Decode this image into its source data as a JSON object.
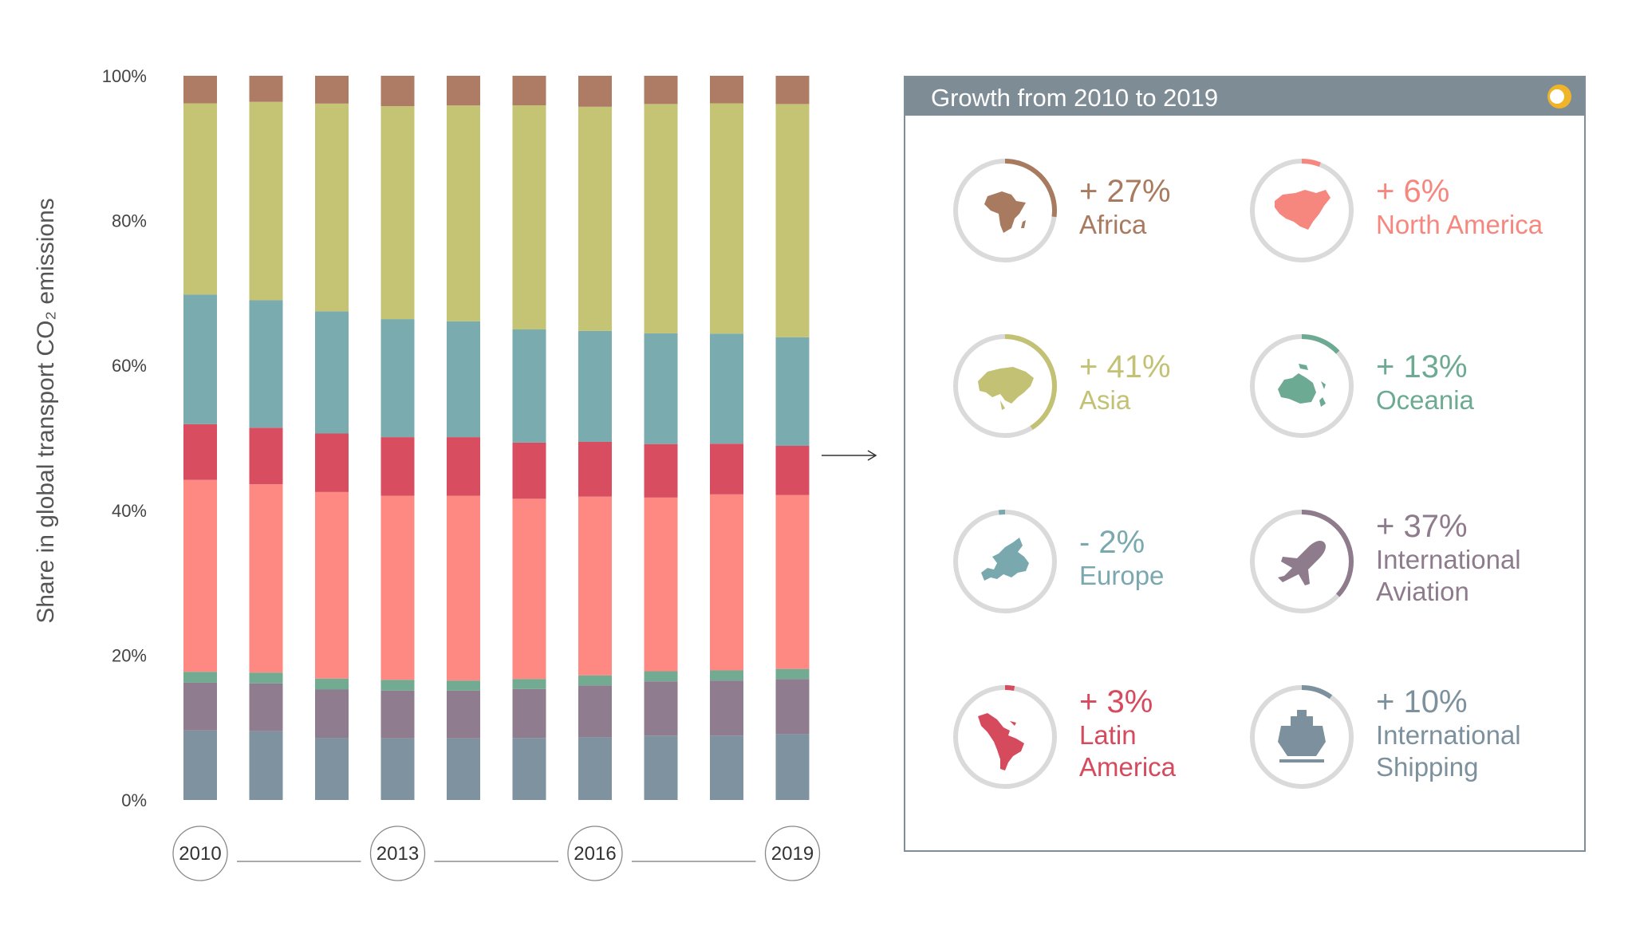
{
  "chart_data": {
    "type": "bar",
    "stacked": true,
    "percent_stacked": true,
    "ylabel": "Share in global transport CO₂ emissions",
    "ylim": [
      0,
      100
    ],
    "y_ticks": [
      "0%",
      "20%",
      "40%",
      "60%",
      "80%",
      "100%"
    ],
    "categories": [
      "2010",
      "2011",
      "2012",
      "2013",
      "2014",
      "2015",
      "2016",
      "2017",
      "2018",
      "2019"
    ],
    "x_tick_labels": [
      "2010",
      "2013",
      "2016",
      "2019"
    ],
    "series": [
      {
        "name": "International Shipping",
        "color": "#7e939f",
        "values": [
          9.6,
          9.5,
          8.5,
          8.5,
          8.5,
          8.6,
          8.7,
          8.9,
          8.9,
          9.1
        ]
      },
      {
        "name": "International Aviation",
        "color": "#8f7c8e",
        "values": [
          6.6,
          6.6,
          6.6,
          6.6,
          6.6,
          6.8,
          7.2,
          7.5,
          7.6,
          7.6
        ]
      },
      {
        "name": "Oceania",
        "color": "#72ab92",
        "values": [
          1.5,
          1.5,
          1.5,
          1.5,
          1.4,
          1.4,
          1.4,
          1.4,
          1.4,
          1.4
        ]
      },
      {
        "name": "North America",
        "color": "#fe8982",
        "values": [
          26.5,
          26.0,
          25.5,
          25.4,
          25.5,
          25.0,
          24.8,
          24.0,
          24.3,
          24.0
        ]
      },
      {
        "name": "Latin America",
        "color": "#d84e60",
        "values": [
          7.7,
          7.8,
          8.0,
          8.1,
          8.1,
          7.8,
          7.6,
          7.4,
          7.0,
          6.8
        ]
      },
      {
        "name": "Europe",
        "color": "#7aabaf",
        "values": [
          17.9,
          17.6,
          16.7,
          16.3,
          16.0,
          15.7,
          15.4,
          15.3,
          15.2,
          15.0
        ]
      },
      {
        "name": "Asia",
        "color": "#c4c474",
        "values": [
          26.4,
          27.4,
          28.4,
          29.4,
          29.8,
          31.1,
          31.1,
          31.7,
          31.8,
          32.2
        ]
      },
      {
        "name": "Africa",
        "color": "#ae7c64",
        "values": [
          3.8,
          3.6,
          3.8,
          4.2,
          4.1,
          4.1,
          4.3,
          3.9,
          3.8,
          3.9
        ]
      }
    ]
  },
  "panel": {
    "title": "Growth from 2010 to 2019",
    "logo_colors": {
      "ring": "#f0b429",
      "inner": "#ffffff"
    },
    "regions": [
      {
        "key": "africa",
        "pct": "+ 27%",
        "name_lines": [
          "Africa"
        ],
        "color": "#a87a5f",
        "growth": 27,
        "icon": "africa-map-icon"
      },
      {
        "key": "north-america",
        "pct": "+ 6%",
        "name_lines": [
          "North America"
        ],
        "color": "#f6877f",
        "growth": 6,
        "icon": "north-america-map-icon"
      },
      {
        "key": "asia",
        "pct": "+ 41%",
        "name_lines": [
          "Asia"
        ],
        "color": "#c3c174",
        "growth": 41,
        "icon": "asia-map-icon"
      },
      {
        "key": "oceania",
        "pct": "+ 13%",
        "name_lines": [
          "Oceania"
        ],
        "color": "#6daa93",
        "growth": 13,
        "icon": "oceania-map-icon"
      },
      {
        "key": "europe",
        "pct": "- 2%",
        "name_lines": [
          "Europe"
        ],
        "color": "#79a9ae",
        "growth": -2,
        "icon": "europe-map-icon"
      },
      {
        "key": "aviation",
        "pct": "+ 37%",
        "name_lines": [
          "International",
          "Aviation"
        ],
        "color": "#8e7b8c",
        "growth": 37,
        "icon": "airplane-icon"
      },
      {
        "key": "latin-america",
        "pct": "+ 3%",
        "name_lines": [
          "Latin",
          "America"
        ],
        "color": "#d64a5e",
        "growth": 3,
        "icon": "latin-america-map-icon"
      },
      {
        "key": "shipping",
        "pct": "+ 10%",
        "name_lines": [
          "International",
          "Shipping"
        ],
        "color": "#7c919d",
        "growth": 10,
        "icon": "ship-icon"
      }
    ]
  }
}
